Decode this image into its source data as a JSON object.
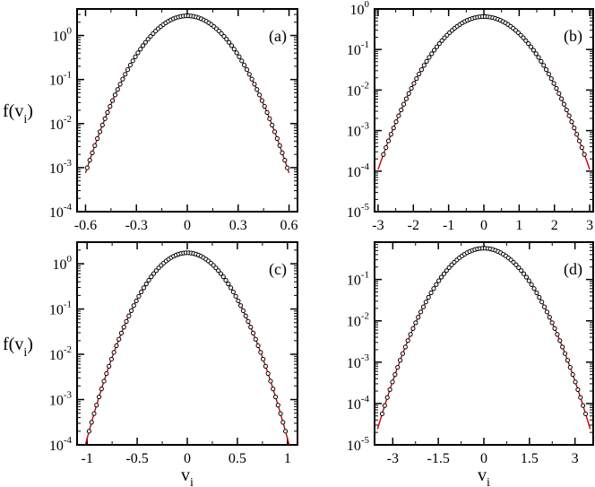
{
  "chart_data": [
    {
      "panel": "(a)",
      "type": "scatter",
      "xticks": [
        "-0.6",
        "-0.3",
        "0",
        "0.3",
        "0.6"
      ],
      "xlim": [
        -0.65,
        0.65
      ],
      "ylog": true,
      "yticks_exp": [
        "0",
        "-1",
        "-2",
        "-3",
        "-4"
      ],
      "ylim": [
        0.0001,
        4.0
      ],
      "ylabel": "f(v_i)",
      "xlabel": "",
      "gaussian": {
        "amplitude": 2.8,
        "sigma": 0.148
      },
      "series": [
        {
          "type": "scatter-open-circle",
          "color": "#000000",
          "x_range": [
            -0.59,
            0.59
          ],
          "points": 80
        },
        {
          "type": "line",
          "color": "#cc0000",
          "x_range": [
            -0.6,
            0.6
          ]
        }
      ]
    },
    {
      "panel": "(b)",
      "type": "scatter",
      "xticks": [
        "-3",
        "-2",
        "-1",
        "0",
        "1",
        "2",
        "3"
      ],
      "xlim": [
        -3.1,
        3.1
      ],
      "ylog": true,
      "yticks_exp": [
        "0",
        "-1",
        "-2",
        "-3",
        "-4",
        "-5"
      ],
      "ylim": [
        1e-05,
        1.0
      ],
      "ylabel": "",
      "xlabel": "",
      "gaussian": {
        "amplitude": 0.65,
        "sigma": 0.72
      },
      "series": [
        {
          "type": "scatter-open-circle",
          "color": "#000000",
          "x_range": [
            -2.85,
            2.85
          ],
          "points": 80
        },
        {
          "type": "line",
          "color": "#cc0000",
          "x_range": [
            -3.0,
            3.0
          ]
        }
      ]
    },
    {
      "panel": "(c)",
      "type": "scatter",
      "xticks": [
        "-1",
        "-0.5",
        "0",
        "0.5",
        "1"
      ],
      "xlim": [
        -1.1,
        1.1
      ],
      "ylog": true,
      "yticks_exp": [
        "0",
        "-1",
        "-2",
        "-3",
        "-4"
      ],
      "ylim": [
        0.0001,
        3.0
      ],
      "ylabel": "f(v_i)",
      "xlabel": "v_i",
      "gaussian": {
        "amplitude": 1.75,
        "sigma": 0.23
      },
      "series": [
        {
          "type": "scatter-open-circle",
          "color": "#000000",
          "x_range": [
            -0.98,
            0.98
          ],
          "points": 80
        },
        {
          "type": "line",
          "color": "#cc0000",
          "x_range": [
            -1.05,
            1.05
          ]
        }
      ]
    },
    {
      "panel": "(d)",
      "type": "scatter",
      "xticks": [
        "-3",
        "-1.5",
        "0",
        "1.5",
        "3"
      ],
      "xlim": [
        -3.6,
        3.6
      ],
      "ylog": true,
      "yticks_exp": [
        "-1",
        "-2",
        "-3",
        "-4",
        "-5"
      ],
      "ylim": [
        1e-05,
        0.8
      ],
      "ylabel": "",
      "xlabel": "v_i",
      "gaussian": {
        "amplitude": 0.57,
        "sigma": 0.78
      },
      "series": [
        {
          "type": "scatter-open-circle",
          "color": "#000000",
          "x_range": [
            -3.35,
            3.35
          ],
          "points": 80
        },
        {
          "type": "line",
          "color": "#cc0000",
          "x_range": [
            -3.5,
            3.5
          ]
        }
      ]
    }
  ]
}
